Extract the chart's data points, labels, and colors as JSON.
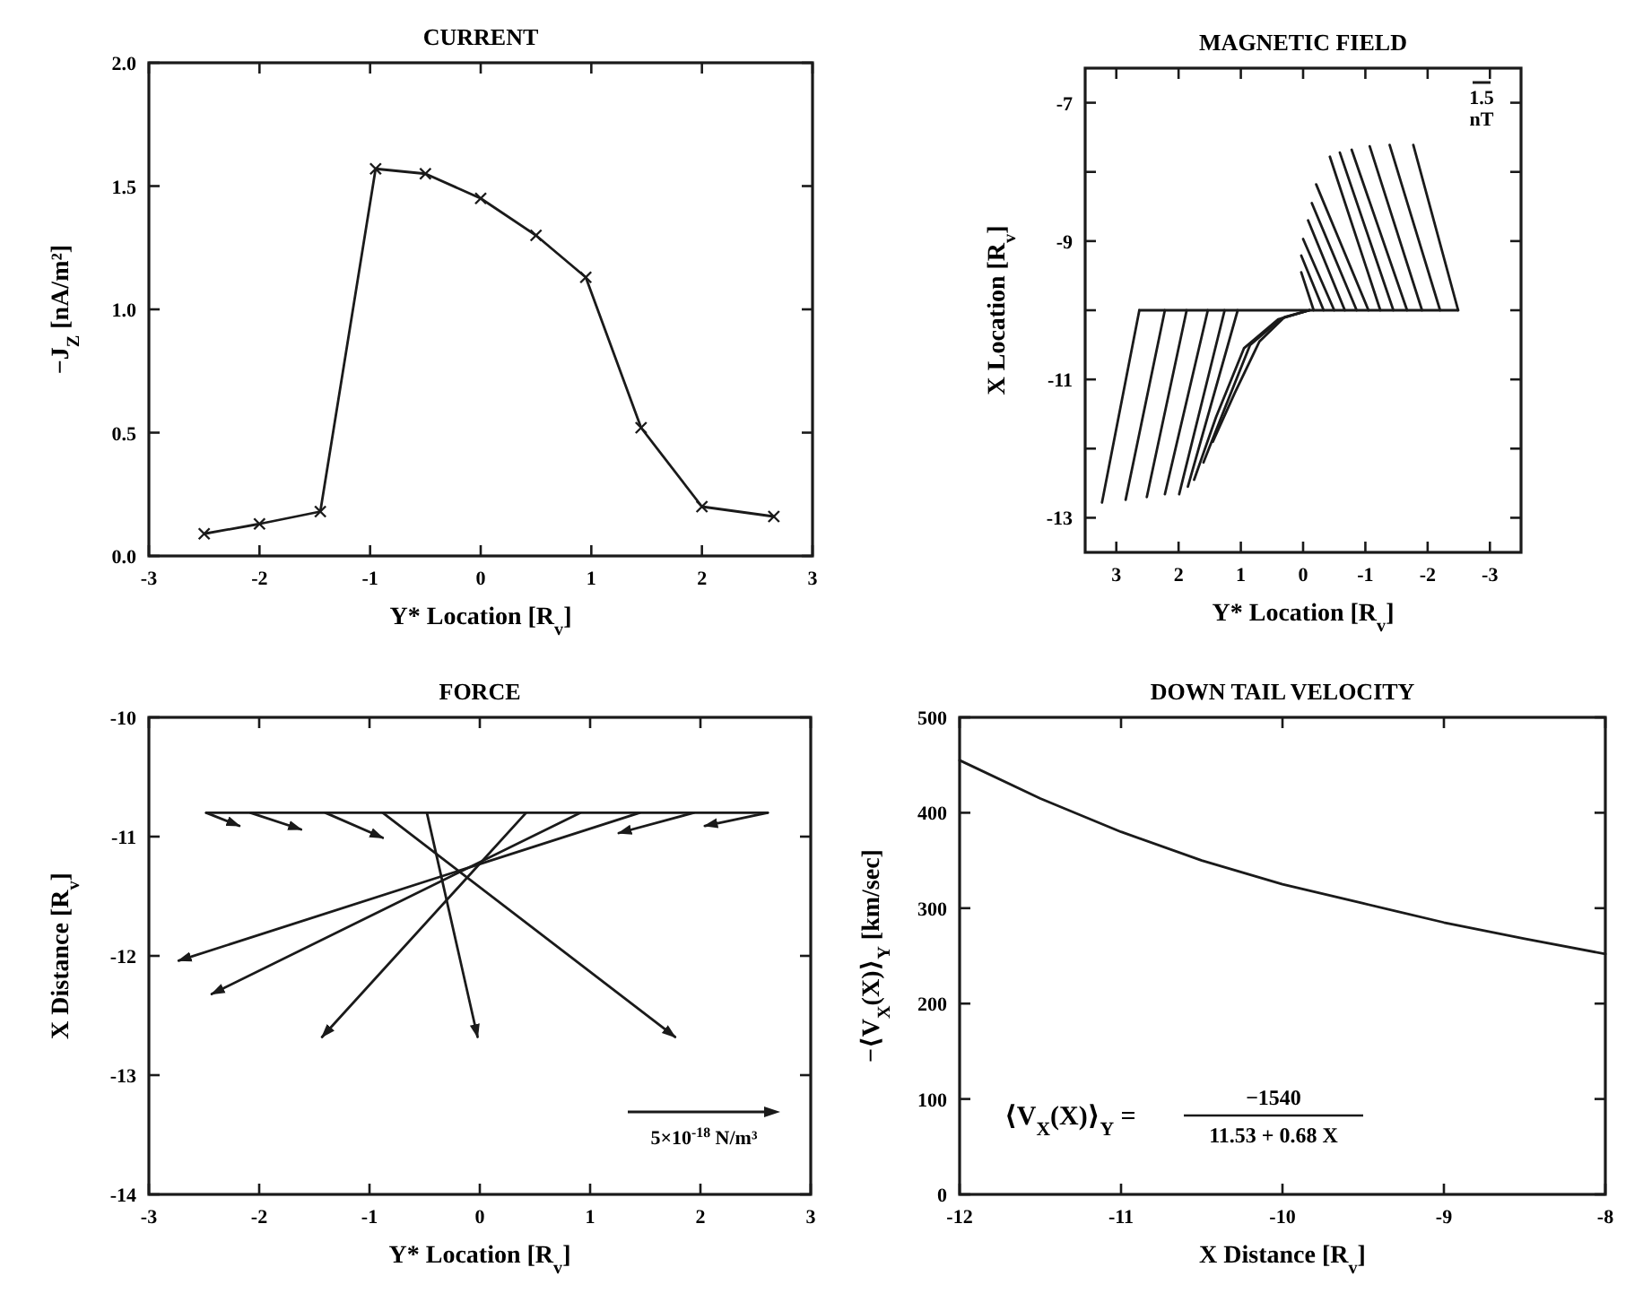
{
  "chart_data": [
    {
      "type": "line",
      "title": "CURRENT",
      "xlabel": "Y* Location [R$_{v}$]",
      "ylabel": "−J$_{Z}$ [nA/m²]",
      "x": [
        -2.5,
        -2,
        -1.45,
        -0.95,
        -0.5,
        0,
        0.5,
        0.95,
        1.45,
        2,
        2.65
      ],
      "values": [
        0.09,
        0.13,
        0.18,
        1.57,
        1.55,
        1.45,
        1.3,
        1.13,
        0.52,
        0.2,
        0.16
      ],
      "color": "#1a1a1a",
      "marker": "cross",
      "xlim": [
        -3,
        3
      ],
      "xticks": [
        -3,
        -2,
        -1,
        0,
        1,
        2,
        3
      ],
      "ylim": [
        0,
        2
      ],
      "yticks": [
        {
          "value": 0,
          "label": "0.0"
        },
        {
          "value": 0.5,
          "label": "0.5"
        },
        {
          "value": 1,
          "label": "1.0"
        },
        {
          "value": 1.5,
          "label": "1.5"
        },
        {
          "value": 2,
          "label": "2.0"
        }
      ]
    },
    {
      "type": "line",
      "title": "MAGNETIC FIELD",
      "xlabel": "Y* Location [R$_{v}$]",
      "ylabel": "X Location [R$_{v}$]",
      "annotations": [
        "1.5 nT"
      ],
      "xlim": [
        3.5,
        -3.5
      ],
      "xticks": [
        3,
        2,
        1,
        0,
        -1,
        -2,
        -3
      ],
      "ylim": [
        -13.5,
        -6.5
      ],
      "yticks": [
        -7,
        {
          "value": -8,
          "label": null
        },
        -9,
        {
          "value": -10,
          "label": null
        },
        -11,
        {
          "value": -12,
          "label": null
        },
        -13
      ],
      "series": [
        {
          "color": "#1a1a1a",
          "x": [
            -2.49,
            -1.77
          ],
          "values": [
            -10,
            -7.61
          ]
        },
        {
          "color": "#1a1a1a",
          "x": [
            -2.2,
            -1.39
          ],
          "values": [
            -10,
            -7.61
          ]
        },
        {
          "color": "#1a1a1a",
          "x": [
            -1.91,
            -1.07
          ],
          "values": [
            -10,
            -7.63
          ]
        },
        {
          "color": "#1a1a1a",
          "x": [
            -1.67,
            -0.78
          ],
          "values": [
            -10,
            -7.68
          ]
        },
        {
          "color": "#1a1a1a",
          "x": [
            -1.45,
            -0.59
          ],
          "values": [
            -10,
            -7.72
          ]
        },
        {
          "color": "#1a1a1a",
          "x": [
            -1.24,
            -0.43
          ],
          "values": [
            -10,
            -7.78
          ]
        },
        {
          "color": "#1a1a1a",
          "x": [
            -1.05,
            -0.21
          ],
          "values": [
            -10,
            -8.18
          ]
        },
        {
          "color": "#1a1a1a",
          "x": [
            -0.86,
            -0.14
          ],
          "values": [
            -10,
            -8.45
          ]
        },
        {
          "color": "#1a1a1a",
          "x": [
            -0.67,
            -0.08
          ],
          "values": [
            -10,
            -8.7
          ]
        },
        {
          "color": "#1a1a1a",
          "x": [
            -0.5,
            0
          ],
          "values": [
            -10,
            -8.97
          ]
        },
        {
          "color": "#1a1a1a",
          "x": [
            -0.33,
            0.03
          ],
          "values": [
            -10,
            -9.21
          ]
        },
        {
          "color": "#1a1a1a",
          "x": [
            -0.17,
            0.03
          ],
          "values": [
            -10,
            -9.45
          ]
        },
        {
          "color": "#1a1a1a",
          "x": [
            2.63,
            -2.49
          ],
          "values": [
            -10,
            -10
          ]
        },
        {
          "color": "#1a1a1a",
          "x": [
            3.23,
            2.63
          ],
          "values": [
            -12.78,
            -10
          ]
        },
        {
          "color": "#1a1a1a",
          "x": [
            2.85,
            2.22
          ],
          "values": [
            -12.74,
            -10
          ]
        },
        {
          "color": "#1a1a1a",
          "x": [
            2.51,
            1.87
          ],
          "values": [
            -12.7,
            -10
          ]
        },
        {
          "color": "#1a1a1a",
          "x": [
            2.22,
            1.53
          ],
          "values": [
            -12.66,
            -10
          ]
        },
        {
          "color": "#1a1a1a",
          "x": [
            1.99,
            1.26
          ],
          "values": [
            -12.66,
            -10
          ]
        },
        {
          "color": "#1a1a1a",
          "x": [
            1.85,
            1.05
          ],
          "values": [
            -12.55,
            -10
          ]
        },
        {
          "color": "#1a1a1a",
          "x": [
            1.75,
            1.4,
            0.95,
            0.4,
            -0.1
          ],
          "values": [
            -12.45,
            -11.55,
            -10.55,
            -10.13,
            -10
          ]
        },
        {
          "color": "#1a1a1a",
          "x": [
            1.6,
            1.25,
            0.85,
            0.35,
            -0.1
          ],
          "values": [
            -12.2,
            -11.4,
            -10.5,
            -10.12,
            -10
          ]
        },
        {
          "color": "#1a1a1a",
          "x": [
            1.45,
            1.1,
            0.7,
            0.3,
            -0.1
          ],
          "values": [
            -11.9,
            -11.2,
            -10.45,
            -10.1,
            -10
          ]
        }
      ]
    },
    {
      "type": "line",
      "title": "FORCE",
      "xlabel": "Y* Location [R$_{v}$]",
      "ylabel": "X Distance [R$_{v}$]",
      "annotations": [
        "5×10$^{-18}$ N/m³"
      ],
      "xlim": [
        -3,
        3
      ],
      "xticks": [
        -3,
        -2,
        -1,
        0,
        1,
        2,
        3
      ],
      "ylim": [
        -14,
        -10
      ],
      "yticks": [
        -14,
        -13,
        -12,
        -11,
        -10
      ],
      "series": [
        {
          "color": "#1a1a1a",
          "x": [
            -2.48,
            2.61
          ],
          "values": [
            -10.8,
            -10.8
          ]
        },
        {
          "color": "#1a1a1a",
          "x": [
            -2.48,
            -2.18
          ],
          "values": [
            -10.8,
            -10.91
          ]
        },
        {
          "color": "#1a1a1a",
          "x": [
            -2.08,
            -1.62
          ],
          "values": [
            -10.8,
            -10.94
          ]
        },
        {
          "color": "#1a1a1a",
          "x": [
            -1.4,
            -0.88
          ],
          "values": [
            -10.8,
            -11.01
          ]
        },
        {
          "color": "#1a1a1a",
          "x": [
            -0.88,
            1.77
          ],
          "values": [
            -10.8,
            -12.68
          ]
        },
        {
          "color": "#1a1a1a",
          "x": [
            -0.48,
            -0.02
          ],
          "values": [
            -10.8,
            -12.68
          ]
        },
        {
          "color": "#1a1a1a",
          "x": [
            0.42,
            -1.43
          ],
          "values": [
            -10.8,
            -12.68
          ]
        },
        {
          "color": "#1a1a1a",
          "x": [
            0.91,
            -2.43
          ],
          "values": [
            -10.8,
            -12.32
          ]
        },
        {
          "color": "#1a1a1a",
          "x": [
            1.45,
            -2.73
          ],
          "values": [
            -10.8,
            -12.04
          ]
        },
        {
          "color": "#1a1a1a",
          "x": [
            1.94,
            1.26
          ],
          "values": [
            -10.8,
            -10.97
          ]
        },
        {
          "color": "#1a1a1a",
          "x": [
            2.61,
            2.04
          ],
          "values": [
            -10.8,
            -10.91
          ]
        }
      ]
    },
    {
      "type": "line",
      "title": "DOWN TAIL VELOCITY",
      "xlabel": "X Distance [R$_{v}$]",
      "ylabel": "−⟨V$_{X}$(X)⟩$_{Y}$ [km/sec]",
      "annotations": [
        "⟨V$_{X}$(X)⟩$_{Y}$ =",
        "−1540",
        "11.53 + 0.68 X"
      ],
      "x": [
        -12,
        -11.5,
        -11,
        -10.5,
        -10,
        -9.5,
        -9,
        -8.5,
        -8
      ],
      "values": [
        455,
        415,
        380,
        350,
        325,
        305,
        285,
        268,
        252
      ],
      "color": "#1a1a1a",
      "xlim": [
        -12,
        -8
      ],
      "xticks": [
        -12,
        -11,
        -10,
        -9,
        -8
      ],
      "ylim": [
        0,
        500
      ],
      "yticks": [
        0,
        100,
        200,
        300,
        400,
        500
      ]
    }
  ]
}
